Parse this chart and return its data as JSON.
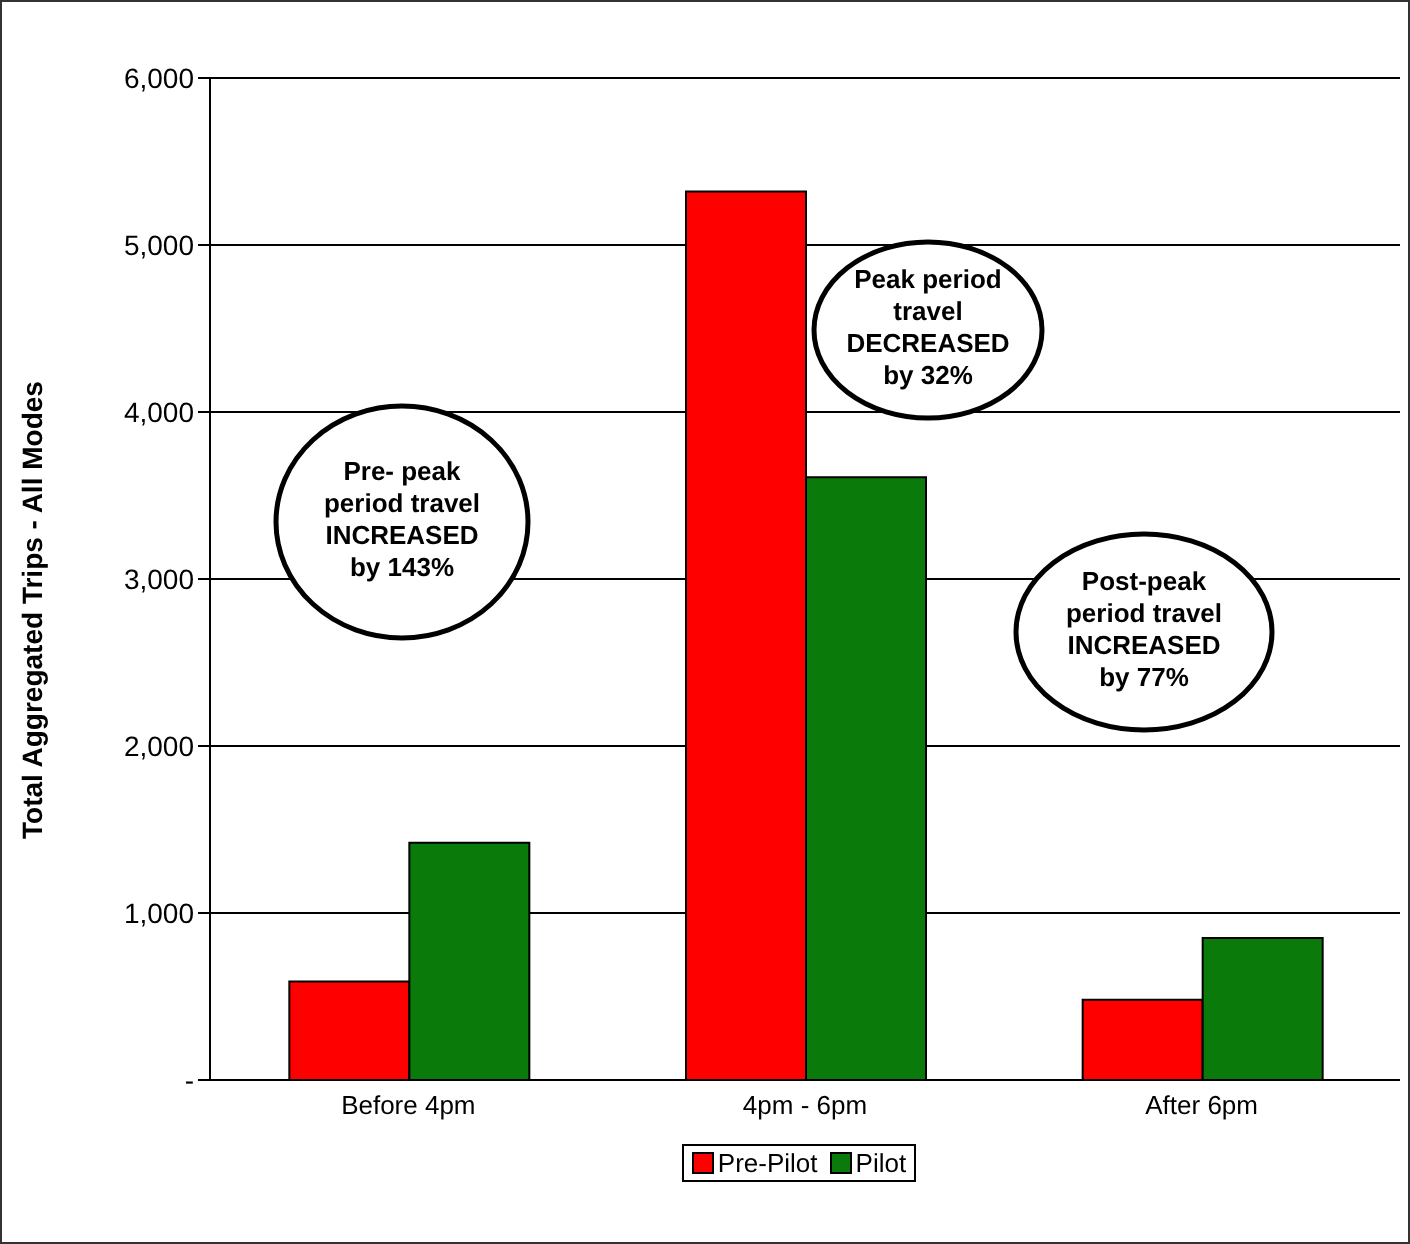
{
  "chart_data": {
    "type": "bar",
    "ylabel": "Total Aggregated Trips - All Modes",
    "categories": [
      "Before 4pm",
      "4pm - 6pm",
      "After 6pm"
    ],
    "series": [
      {
        "name": "Pre-Pilot",
        "color": "#ff0000",
        "values": [
          590,
          5320,
          480
        ]
      },
      {
        "name": "Pilot",
        "color": "#0a7a0a",
        "values": [
          1420,
          3610,
          850
        ]
      }
    ],
    "ylim": [
      0,
      6000
    ],
    "yticks": [
      {
        "value": 0,
        "label": "-"
      },
      {
        "value": 1000,
        "label": "1,000"
      },
      {
        "value": 2000,
        "label": "2,000"
      },
      {
        "value": 3000,
        "label": "3,000"
      },
      {
        "value": 4000,
        "label": "4,000"
      },
      {
        "value": 5000,
        "label": "5,000"
      },
      {
        "value": 6000,
        "label": "6,000"
      }
    ],
    "grid": "y",
    "legend": "bottom",
    "annotations": [
      "Pre- peak period travel INCREASED by 143%",
      "Peak period travel DECREASED by 32%",
      "Post-peak period travel INCREASED by 77%"
    ]
  }
}
